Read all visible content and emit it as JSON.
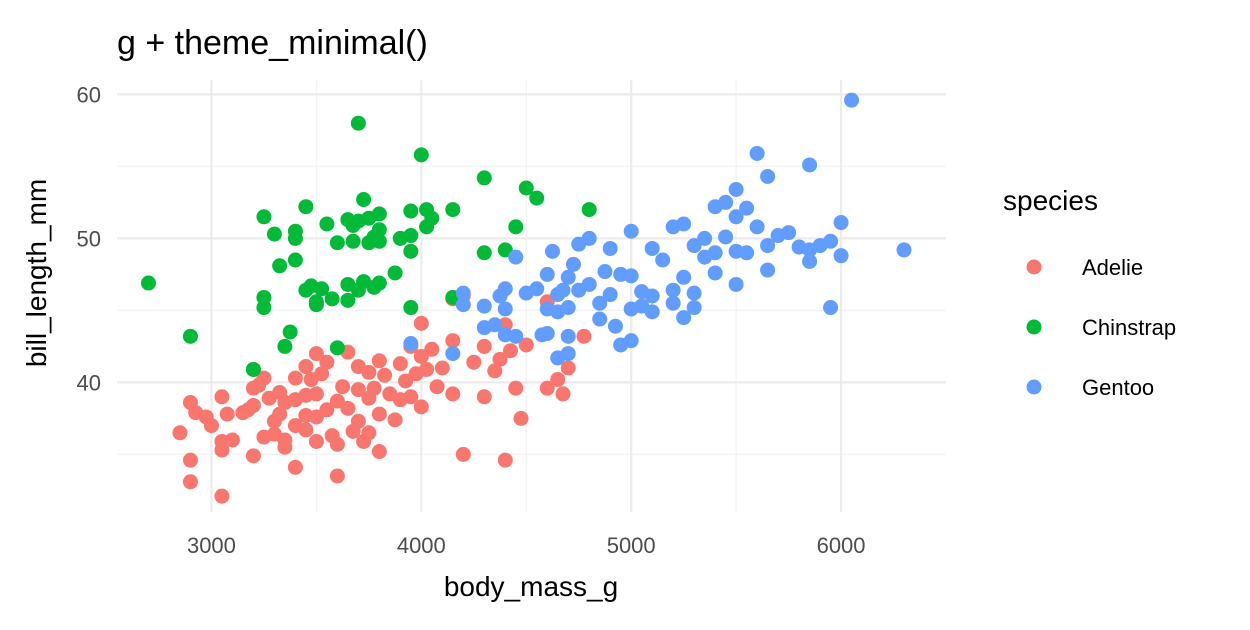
{
  "chart_data": {
    "type": "scatter",
    "title": "g + theme_minimal()",
    "xlabel": "body_mass_g",
    "ylabel": "bill_length_mm",
    "xlim": [
      2550,
      6500
    ],
    "ylim": [
      31,
      61
    ],
    "x_ticks": [
      3000,
      4000,
      5000,
      6000
    ],
    "y_ticks": [
      40,
      50,
      60
    ],
    "x_minor": [
      3500,
      4500,
      5500
    ],
    "y_minor": [
      35,
      45,
      55
    ],
    "x_tick_labels": [
      "3000",
      "4000",
      "5000",
      "6000"
    ],
    "y_tick_labels": [
      "40",
      "50",
      "60"
    ],
    "grid": true,
    "legend": {
      "title": "species",
      "position": "right"
    },
    "series": [
      {
        "name": "Adelie",
        "color": "#F8766D",
        "points": [
          [
            2850,
            36.5
          ],
          [
            2900,
            38.6
          ],
          [
            2900,
            34.6
          ],
          [
            2900,
            33.1
          ],
          [
            2925,
            37.9
          ],
          [
            2975,
            37.6
          ],
          [
            3000,
            37.0
          ],
          [
            3050,
            39.0
          ],
          [
            3050,
            35.9
          ],
          [
            3050,
            35.3
          ],
          [
            3050,
            32.1
          ],
          [
            3075,
            37.8
          ],
          [
            3100,
            36.0
          ],
          [
            3150,
            37.9
          ],
          [
            3175,
            38.1
          ],
          [
            3200,
            40.9
          ],
          [
            3200,
            39.6
          ],
          [
            3200,
            34.9
          ],
          [
            3200,
            38.4
          ],
          [
            3225,
            39.8
          ],
          [
            3250,
            40.3
          ],
          [
            3250,
            36.2
          ],
          [
            3275,
            38.9
          ],
          [
            3300,
            37.3
          ],
          [
            3300,
            36.4
          ],
          [
            3325,
            39.3
          ],
          [
            3325,
            37.8
          ],
          [
            3350,
            38.6
          ],
          [
            3350,
            35.5
          ],
          [
            3350,
            36.0
          ],
          [
            3400,
            38.8
          ],
          [
            3400,
            40.3
          ],
          [
            3400,
            37.0
          ],
          [
            3400,
            34.1
          ],
          [
            3450,
            39.1
          ],
          [
            3450,
            41.1
          ],
          [
            3450,
            37.7
          ],
          [
            3450,
            36.7
          ],
          [
            3475,
            40.2
          ],
          [
            3500,
            42.0
          ],
          [
            3500,
            39.2
          ],
          [
            3500,
            37.6
          ],
          [
            3500,
            35.9
          ],
          [
            3525,
            40.6
          ],
          [
            3550,
            41.4
          ],
          [
            3550,
            38.1
          ],
          [
            3575,
            36.3
          ],
          [
            3600,
            38.7
          ],
          [
            3600,
            35.7
          ],
          [
            3600,
            33.5
          ],
          [
            3625,
            39.7
          ],
          [
            3650,
            42.1
          ],
          [
            3650,
            38.2
          ],
          [
            3675,
            36.6
          ],
          [
            3700,
            41.1
          ],
          [
            3700,
            39.5
          ],
          [
            3700,
            37.3
          ],
          [
            3725,
            35.9
          ],
          [
            3750,
            40.7
          ],
          [
            3750,
            38.9
          ],
          [
            3750,
            36.5
          ],
          [
            3775,
            39.6
          ],
          [
            3800,
            41.5
          ],
          [
            3800,
            37.8
          ],
          [
            3800,
            35.2
          ],
          [
            3825,
            40.5
          ],
          [
            3850,
            39.2
          ],
          [
            3875,
            37.4
          ],
          [
            3900,
            41.3
          ],
          [
            3900,
            38.8
          ],
          [
            3925,
            40.1
          ],
          [
            3950,
            39.0
          ],
          [
            3950,
            42.5
          ],
          [
            3975,
            40.6
          ],
          [
            4000,
            41.8
          ],
          [
            4000,
            38.3
          ],
          [
            4000,
            44.1
          ],
          [
            4025,
            40.9
          ],
          [
            4050,
            42.3
          ],
          [
            4075,
            39.7
          ],
          [
            4100,
            41.0
          ],
          [
            4150,
            45.8
          ],
          [
            4150,
            42.9
          ],
          [
            4150,
            39.2
          ],
          [
            4200,
            46.0
          ],
          [
            4200,
            35.0
          ],
          [
            4250,
            41.4
          ],
          [
            4300,
            42.5
          ],
          [
            4300,
            39.0
          ],
          [
            4350,
            40.8
          ],
          [
            4375,
            41.6
          ],
          [
            4400,
            44.0
          ],
          [
            4400,
            34.6
          ],
          [
            4425,
            42.2
          ],
          [
            4450,
            39.6
          ],
          [
            4475,
            37.5
          ],
          [
            4500,
            42.6
          ],
          [
            4600,
            45.6
          ],
          [
            4600,
            39.6
          ],
          [
            4650,
            40.2
          ],
          [
            4675,
            39.2
          ],
          [
            4700,
            41.0
          ],
          [
            4775,
            43.2
          ]
        ]
      },
      {
        "name": "Chinstrap",
        "color": "#00BA38",
        "points": [
          [
            2700,
            46.9
          ],
          [
            2900,
            43.2
          ],
          [
            3200,
            40.9
          ],
          [
            3250,
            51.5
          ],
          [
            3250,
            45.9
          ],
          [
            3250,
            45.2
          ],
          [
            3300,
            50.3
          ],
          [
            3325,
            48.1
          ],
          [
            3350,
            42.5
          ],
          [
            3375,
            43.5
          ],
          [
            3400,
            50.5
          ],
          [
            3400,
            50.0
          ],
          [
            3400,
            48.5
          ],
          [
            3450,
            52.2
          ],
          [
            3450,
            46.4
          ],
          [
            3475,
            46.7
          ],
          [
            3500,
            45.6
          ],
          [
            3500,
            45.4
          ],
          [
            3525,
            46.5
          ],
          [
            3550,
            51.0
          ],
          [
            3575,
            45.8
          ],
          [
            3600,
            49.7
          ],
          [
            3600,
            42.4
          ],
          [
            3650,
            51.3
          ],
          [
            3650,
            46.8
          ],
          [
            3650,
            45.7
          ],
          [
            3675,
            49.8
          ],
          [
            3675,
            50.9
          ],
          [
            3700,
            58.0
          ],
          [
            3700,
            51.2
          ],
          [
            3700,
            46.4
          ],
          [
            3725,
            52.7
          ],
          [
            3725,
            47.0
          ],
          [
            3750,
            51.4
          ],
          [
            3750,
            49.7
          ],
          [
            3775,
            50.1
          ],
          [
            3775,
            46.6
          ],
          [
            3800,
            51.7
          ],
          [
            3800,
            49.8
          ],
          [
            3800,
            46.9
          ],
          [
            3800,
            50.6
          ],
          [
            3875,
            47.6
          ],
          [
            3900,
            50.0
          ],
          [
            3950,
            51.9
          ],
          [
            3950,
            50.2
          ],
          [
            3950,
            49.1
          ],
          [
            3950,
            45.2
          ],
          [
            4000,
            55.8
          ],
          [
            4025,
            52.0
          ],
          [
            4025,
            50.8
          ],
          [
            4050,
            51.4
          ],
          [
            4150,
            52.0
          ],
          [
            4150,
            45.9
          ],
          [
            4300,
            54.2
          ],
          [
            4300,
            49.0
          ],
          [
            4400,
            49.2
          ],
          [
            4450,
            50.8
          ],
          [
            4500,
            53.5
          ],
          [
            4550,
            52.8
          ],
          [
            4800,
            52.0
          ]
        ]
      },
      {
        "name": "Gentoo",
        "color": "#619CFF",
        "points": [
          [
            3950,
            42.7
          ],
          [
            4150,
            42.0
          ],
          [
            4200,
            45.4
          ],
          [
            4200,
            46.2
          ],
          [
            4300,
            45.3
          ],
          [
            4300,
            43.8
          ],
          [
            4350,
            44.0
          ],
          [
            4375,
            46.0
          ],
          [
            4400,
            45.1
          ],
          [
            4400,
            46.5
          ],
          [
            4400,
            43.3
          ],
          [
            4450,
            48.7
          ],
          [
            4450,
            43.2
          ],
          [
            4500,
            46.2
          ],
          [
            4550,
            46.5
          ],
          [
            4575,
            43.3
          ],
          [
            4600,
            47.5
          ],
          [
            4600,
            45.1
          ],
          [
            4600,
            43.4
          ],
          [
            4625,
            49.1
          ],
          [
            4650,
            46.1
          ],
          [
            4650,
            44.9
          ],
          [
            4650,
            41.7
          ],
          [
            4675,
            46.4
          ],
          [
            4700,
            47.3
          ],
          [
            4700,
            45.2
          ],
          [
            4700,
            43.2
          ],
          [
            4700,
            42.0
          ],
          [
            4725,
            48.2
          ],
          [
            4750,
            49.6
          ],
          [
            4750,
            46.4
          ],
          [
            4800,
            50.0
          ],
          [
            4800,
            46.8
          ],
          [
            4850,
            45.5
          ],
          [
            4850,
            44.4
          ],
          [
            4875,
            47.7
          ],
          [
            4900,
            49.3
          ],
          [
            4900,
            46.1
          ],
          [
            4925,
            43.9
          ],
          [
            4950,
            47.5
          ],
          [
            4950,
            42.6
          ],
          [
            5000,
            50.5
          ],
          [
            5000,
            47.4
          ],
          [
            5000,
            45.1
          ],
          [
            5000,
            42.9
          ],
          [
            5050,
            46.3
          ],
          [
            5050,
            45.3
          ],
          [
            5100,
            49.3
          ],
          [
            5100,
            46.0
          ],
          [
            5100,
            44.9
          ],
          [
            5150,
            48.5
          ],
          [
            5200,
            50.8
          ],
          [
            5200,
            45.5
          ],
          [
            5200,
            46.4
          ],
          [
            5250,
            47.3
          ],
          [
            5250,
            51.0
          ],
          [
            5250,
            44.5
          ],
          [
            5300,
            49.5
          ],
          [
            5300,
            45.2
          ],
          [
            5300,
            46.2
          ],
          [
            5350,
            50.0
          ],
          [
            5350,
            48.7
          ],
          [
            5400,
            52.2
          ],
          [
            5400,
            47.6
          ],
          [
            5400,
            49.0
          ],
          [
            5450,
            52.5
          ],
          [
            5450,
            50.1
          ],
          [
            5500,
            53.4
          ],
          [
            5500,
            51.5
          ],
          [
            5500,
            49.1
          ],
          [
            5500,
            46.8
          ],
          [
            5550,
            52.1
          ],
          [
            5550,
            49.0
          ],
          [
            5600,
            55.9
          ],
          [
            5600,
            50.8
          ],
          [
            5650,
            54.3
          ],
          [
            5650,
            49.5
          ],
          [
            5650,
            47.8
          ],
          [
            5700,
            50.2
          ],
          [
            5750,
            50.4
          ],
          [
            5800,
            49.4
          ],
          [
            5850,
            55.1
          ],
          [
            5850,
            49.2
          ],
          [
            5850,
            48.4
          ],
          [
            5900,
            49.5
          ],
          [
            5950,
            45.2
          ],
          [
            5950,
            49.8
          ],
          [
            6000,
            51.1
          ],
          [
            6000,
            48.8
          ],
          [
            6050,
            59.6
          ],
          [
            6300,
            49.2
          ]
        ]
      }
    ]
  }
}
